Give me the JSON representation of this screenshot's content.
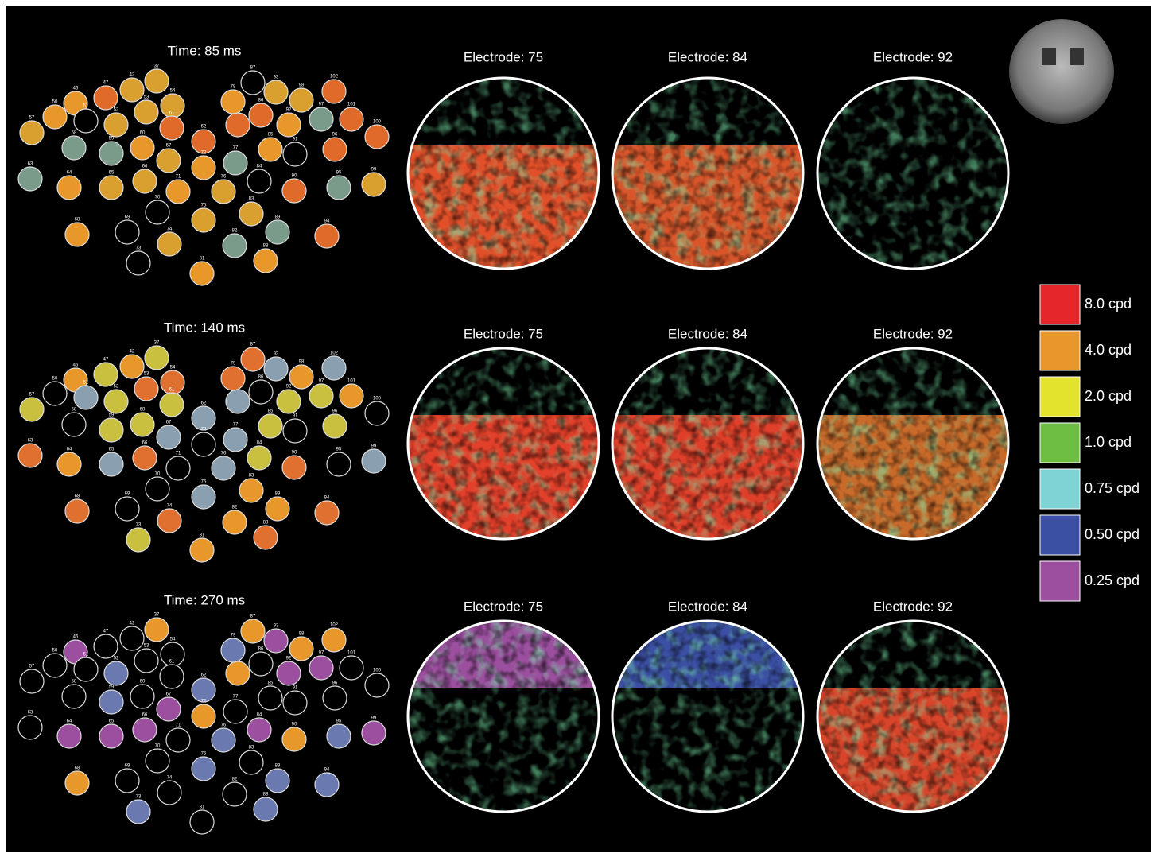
{
  "panels": [
    {
      "time": "Time: 85 ms",
      "electrodes": [
        "Electrode: 75",
        "Electrode: 84",
        "Electrode: 92"
      ]
    },
    {
      "time": "Time: 140 ms",
      "electrodes": [
        "Electrode: 75",
        "Electrode: 84",
        "Electrode: 92"
      ]
    },
    {
      "time": "Time: 270 ms",
      "electrodes": [
        "Electrode: 75",
        "Electrode: 84",
        "Electrode: 92"
      ]
    }
  ],
  "electrode_labels": [
    "37",
    "42",
    "46",
    "47",
    "54",
    "53",
    "50",
    "51",
    "52",
    "57",
    "61",
    "58",
    "59",
    "60",
    "67",
    "62",
    "63",
    "64",
    "65",
    "66",
    "72",
    "71",
    "70",
    "69",
    "68",
    "74",
    "73",
    "81",
    "75",
    "76",
    "77",
    "78",
    "79",
    "87",
    "93",
    "86",
    "98",
    "102",
    "92",
    "97",
    "101",
    "100",
    "85",
    "91",
    "96",
    "84",
    "83",
    "90",
    "95",
    "99",
    "89",
    "82",
    "88",
    "94"
  ],
  "legend": [
    {
      "label": "8.0 cpd",
      "color": "#e5262b"
    },
    {
      "label": "4.0 cpd",
      "color": "#e8982a"
    },
    {
      "label": "2.0 cpd",
      "color": "#e3e22c"
    },
    {
      "label": "1.0 cpd",
      "color": "#6fbe44"
    },
    {
      "label": "0.75 cpd",
      "color": "#7fd3d4"
    },
    {
      "label": "0.50 cpd",
      "color": "#3b4fa3"
    },
    {
      "label": "0.25 cpd",
      "color": "#9b4f9e"
    }
  ]
}
